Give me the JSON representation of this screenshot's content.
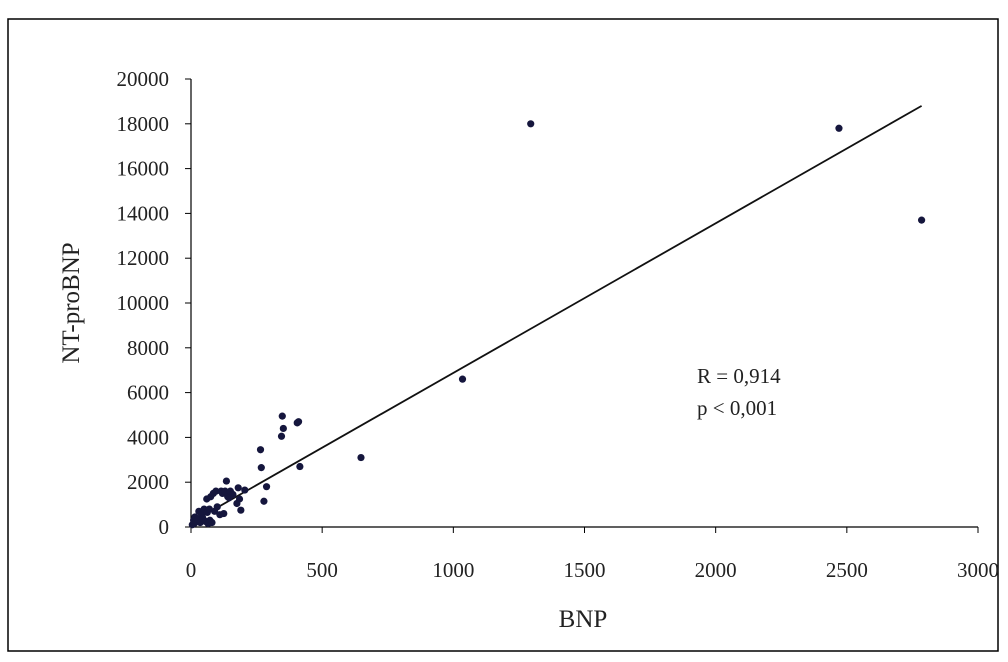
{
  "chart_data": {
    "type": "scatter",
    "xlabel": "BNP",
    "ylabel": "NT-proBNP",
    "xlim": [
      0,
      3000
    ],
    "ylim": [
      0,
      20000
    ],
    "x_ticks": [
      "0",
      "500",
      "1000",
      "1500",
      "2000",
      "2500",
      "3000"
    ],
    "y_ticks": [
      "0",
      "2000",
      "4000",
      "6000",
      "8000",
      "10000",
      "12000",
      "14000",
      "16000",
      "18000",
      "20000"
    ],
    "grid": false,
    "legend": "none",
    "annotations": [
      "R = 0,914",
      "p <  0,001"
    ],
    "point_color": "#15163d",
    "line_color": "#111111",
    "trendline": {
      "x": [
        0,
        2785
      ],
      "y": [
        200,
        18800
      ]
    },
    "points": [
      [
        5,
        100
      ],
      [
        10,
        300
      ],
      [
        12,
        150
      ],
      [
        15,
        450
      ],
      [
        20,
        250
      ],
      [
        25,
        350
      ],
      [
        30,
        700
      ],
      [
        35,
        200
      ],
      [
        40,
        550
      ],
      [
        45,
        400
      ],
      [
        50,
        800
      ],
      [
        55,
        250
      ],
      [
        60,
        1250
      ],
      [
        62,
        650
      ],
      [
        65,
        150
      ],
      [
        70,
        800
      ],
      [
        72,
        300
      ],
      [
        75,
        1350
      ],
      [
        80,
        200
      ],
      [
        85,
        1500
      ],
      [
        90,
        700
      ],
      [
        95,
        1600
      ],
      [
        100,
        900
      ],
      [
        110,
        550
      ],
      [
        115,
        1600
      ],
      [
        120,
        1500
      ],
      [
        125,
        600
      ],
      [
        130,
        1600
      ],
      [
        135,
        2050
      ],
      [
        140,
        1350
      ],
      [
        145,
        1300
      ],
      [
        150,
        1600
      ],
      [
        160,
        1450
      ],
      [
        175,
        1050
      ],
      [
        180,
        1750
      ],
      [
        185,
        1250
      ],
      [
        190,
        750
      ],
      [
        205,
        1650
      ],
      [
        265,
        3450
      ],
      [
        268,
        2650
      ],
      [
        278,
        1150
      ],
      [
        288,
        1800
      ],
      [
        345,
        4050
      ],
      [
        348,
        4950
      ],
      [
        352,
        4400
      ],
      [
        405,
        4650
      ],
      [
        410,
        4700
      ],
      [
        415,
        2700
      ],
      [
        648,
        3100
      ],
      [
        1035,
        6600
      ],
      [
        1295,
        18000
      ],
      [
        2470,
        17800
      ],
      [
        2785,
        13700
      ]
    ]
  }
}
